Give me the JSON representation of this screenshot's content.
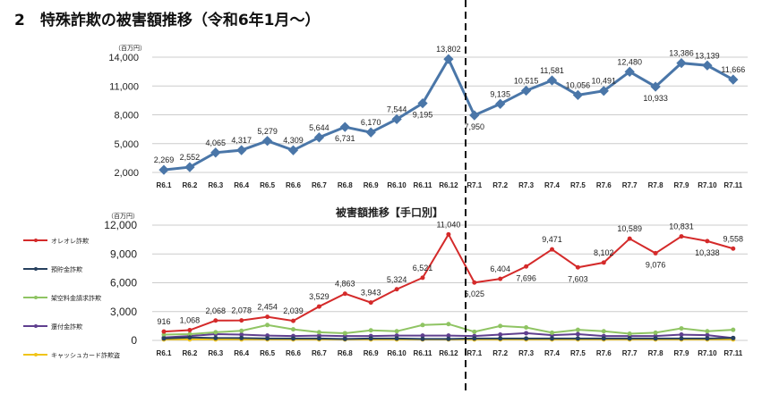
{
  "title": "2　特殊詐欺の被害額推移（令和6年1月～）",
  "chart_data": [
    {
      "type": "line",
      "ylabel": "（百万円）",
      "ylim": [
        2000,
        14000
      ],
      "yticks": [
        "2,000",
        "5,000",
        "8,000",
        "11,000",
        "14,000"
      ],
      "ytick_values": [
        2000,
        5000,
        8000,
        11000,
        14000
      ],
      "grid": true,
      "categories": [
        "R6.1",
        "R6.2",
        "R6.3",
        "R6.4",
        "R6.5",
        "R6.6",
        "R6.7",
        "R6.8",
        "R6.9",
        "R6.10",
        "R6.11",
        "R6.12",
        "R7.1",
        "R7.2",
        "R7.3",
        "R7.4",
        "R7.5",
        "R7.6",
        "R7.7",
        "R7.8",
        "R7.9",
        "R7.10",
        "R7.11"
      ],
      "series": [
        {
          "color": "#4a76a8",
          "values": [
            2269,
            2552,
            4065,
            4317,
            5279,
            4309,
            5644,
            6731,
            6170,
            7544,
            9195,
            13802,
            7950,
            9135,
            10515,
            11581,
            10056,
            10491,
            12480,
            10933,
            13386,
            13139,
            11666
          ],
          "labels": [
            "2,269",
            "2,552",
            "4,065",
            "4,317",
            "5,279",
            "4,309",
            "5,644",
            "6,731",
            "6,170",
            "7,544",
            "9,195",
            "13,802",
            "7,950",
            "9,135",
            "10,515",
            "11,581",
            "10,056",
            "10,491",
            "12,480",
            "10,933",
            "13,386",
            "13,139",
            "11,666"
          ]
        }
      ],
      "annotation": "dashed divider between R6.12 and R7.1"
    },
    {
      "type": "line",
      "title": "被害額推移【手口別】",
      "ylabel": "（百万円）",
      "ylim": [
        0,
        12000
      ],
      "yticks": [
        "0",
        "3,000",
        "6,000",
        "9,000",
        "12,000"
      ],
      "ytick_values": [
        0,
        3000,
        6000,
        9000,
        12000
      ],
      "grid": true,
      "legend": "left",
      "categories": [
        "R6.1",
        "R6.2",
        "R6.3",
        "R6.4",
        "R6.5",
        "R6.6",
        "R6.7",
        "R6.8",
        "R6.9",
        "R6.10",
        "R6.11",
        "R6.12",
        "R7.1",
        "R7.2",
        "R7.3",
        "R7.4",
        "R7.5",
        "R7.6",
        "R7.7",
        "R7.8",
        "R7.9",
        "R7.10",
        "R7.11"
      ],
      "series": [
        {
          "name": "オレオレ詐欺",
          "color": "#d42a2a",
          "values": [
            916,
            1068,
            2068,
            2078,
            2454,
            2039,
            3529,
            4863,
            3943,
            5324,
            6521,
            11040,
            6025,
            6404,
            7696,
            9471,
            7603,
            8102,
            10589,
            9076,
            10831,
            10338,
            9558
          ],
          "labels": [
            "916",
            "1,068",
            "2,068",
            "2,078",
            "2,454",
            "2,039",
            "3,529",
            "4,863",
            "3,943",
            "5,324",
            "6,521",
            "11,040",
            "6,025",
            "6,404",
            "7,696",
            "9,471",
            "7,603",
            "8,102",
            "10,589",
            "9,076",
            "10,831",
            "10,338",
            "9,558"
          ]
        },
        {
          "name": "預貯金詐欺",
          "color": "#27405e",
          "values": [
            200,
            300,
            250,
            250,
            200,
            200,
            200,
            150,
            200,
            200,
            150,
            150,
            200,
            200,
            200,
            200,
            200,
            200,
            200,
            200,
            200,
            200,
            250
          ]
        },
        {
          "name": "架空料金請求詐欺",
          "color": "#8fc463",
          "values": [
            600,
            650,
            850,
            1000,
            1600,
            1150,
            850,
            750,
            1050,
            950,
            1600,
            1700,
            900,
            1500,
            1350,
            800,
            1100,
            950,
            700,
            800,
            1250,
            950,
            1100
          ]
        },
        {
          "name": "還付金詐欺",
          "color": "#5f3f8f",
          "values": [
            300,
            450,
            650,
            600,
            500,
            450,
            500,
            450,
            450,
            500,
            500,
            500,
            450,
            600,
            750,
            550,
            650,
            450,
            450,
            450,
            600,
            550,
            250
          ]
        },
        {
          "name": "キャッシュカード詐欺盗",
          "color": "#f0c419",
          "values": [
            100,
            100,
            100,
            100,
            100,
            100,
            100,
            100,
            100,
            100,
            100,
            100,
            100,
            100,
            100,
            100,
            100,
            100,
            100,
            100,
            100,
            100,
            100
          ]
        }
      ]
    }
  ]
}
